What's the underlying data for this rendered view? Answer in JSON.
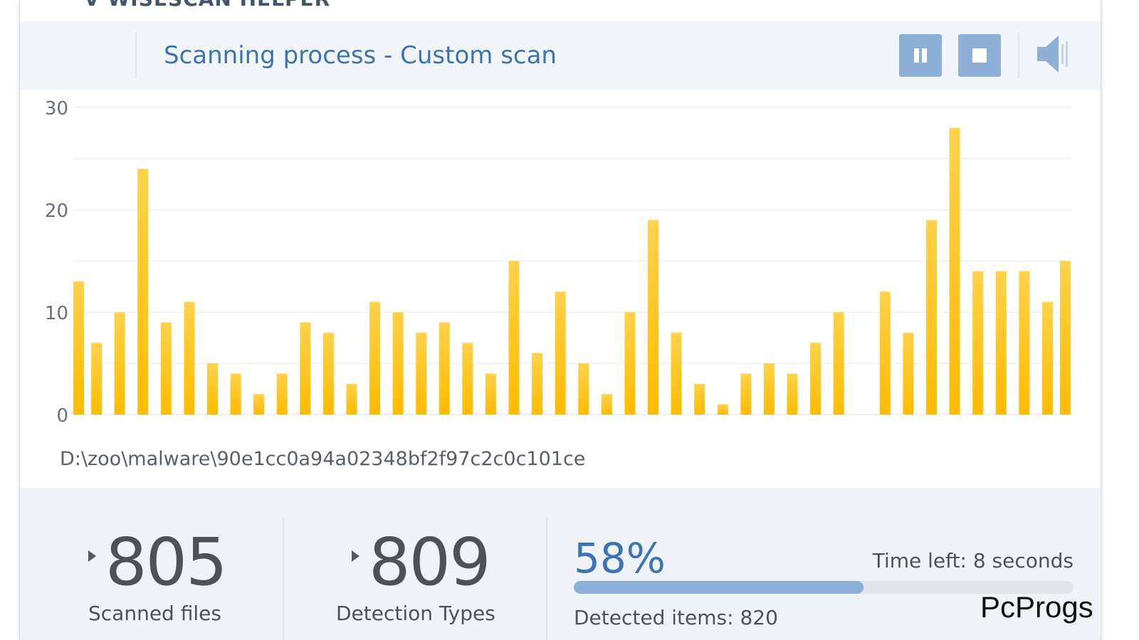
{
  "window": {
    "cut_title": "ᐁ WISESCAN HELPER"
  },
  "header": {
    "title": "Scanning process - Custom scan",
    "pause_icon": "pause-icon",
    "stop_icon": "stop-icon",
    "sound_icon": "speaker-icon",
    "accent_color": "#3b74b2",
    "button_color": "#8fb0d6"
  },
  "chart_data": {
    "type": "bar",
    "ylim": [
      0,
      30
    ],
    "yticks": [
      0,
      10,
      20,
      30
    ],
    "grid": true,
    "bar_color_top": "#ffd24a",
    "bar_color_bottom": "#ffbb00",
    "values": [
      13,
      7,
      10,
      24,
      9,
      11,
      5,
      4,
      2,
      4,
      9,
      8,
      3,
      11,
      10,
      8,
      9,
      7,
      4,
      15,
      6,
      12,
      5,
      2,
      10,
      19,
      8,
      3,
      1,
      4,
      5,
      4,
      7,
      10,
      0,
      12,
      8,
      19,
      28,
      14,
      14,
      14,
      11,
      15
    ]
  },
  "current_file": "D:\\zoo\\malware\\90e1cc0a94a02348bf2f97c2c0c101ce",
  "stats": {
    "scanned_files": {
      "value": "805",
      "label": "Scanned files"
    },
    "detection_types": {
      "value": "809",
      "label": "Detection Types"
    }
  },
  "progress": {
    "percent_text": "58%",
    "fraction": 0.58,
    "time_left": "Time left: 8 seconds",
    "detected_items": "Detected items: 820"
  },
  "watermark": "PcProgs"
}
